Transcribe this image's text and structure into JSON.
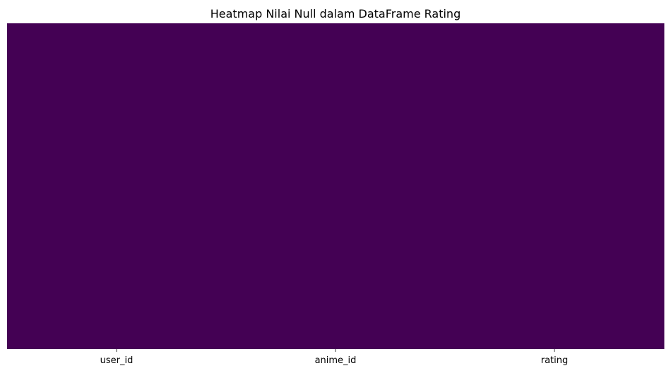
{
  "chart_data": {
    "type": "heatmap",
    "title": "Heatmap Nilai Null dalam DataFrame Rating",
    "xlabel": "",
    "ylabel": "",
    "columns": [
      "user_id",
      "anime_id",
      "rating"
    ],
    "values": [
      [
        0,
        0,
        0
      ]
    ],
    "y_tick_labels_shown": false,
    "colorbar": false,
    "colormap": "viridis",
    "cell_color": "#440154",
    "grid": false
  }
}
